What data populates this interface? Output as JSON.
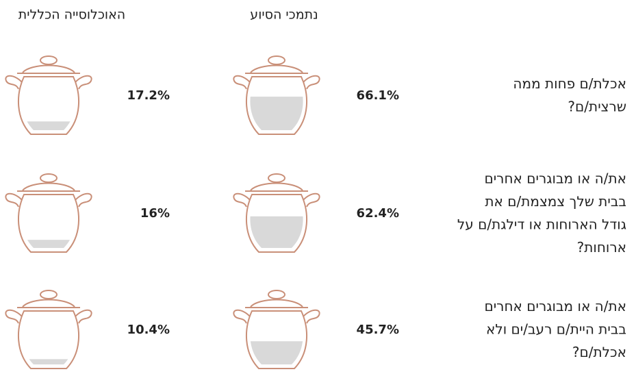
{
  "chart_data": {
    "type": "pictogram",
    "categories": [
      [
        "אכלת/ם פחות ממה",
        "שרצית/ם?"
      ],
      [
        "את/ה או מבוגרים אחרים",
        "בבית שלך צמצמת/ם את",
        "גודל הארוחות או דילגת/ם על",
        "ארוחות?"
      ],
      [
        "את/ה או מבוגרים אחרים",
        "בבית היית/ם רעב/ים ולא",
        "אכלת/ם?"
      ]
    ],
    "series": [
      {
        "name": "נתמכי הסיוע",
        "color": "#d9d9d9",
        "values": [
          66.1,
          62.4,
          45.7
        ],
        "value_labels": [
          "66.1%",
          "62.4%",
          "45.7%"
        ]
      },
      {
        "name": "האוכלוסייה הכללית",
        "color": "#d9d9d9",
        "values": [
          17.2,
          16,
          10.4
        ],
        "value_labels": [
          "17.2%",
          "16%",
          "10.4%"
        ]
      }
    ],
    "ylim": [
      0,
      100
    ]
  }
}
